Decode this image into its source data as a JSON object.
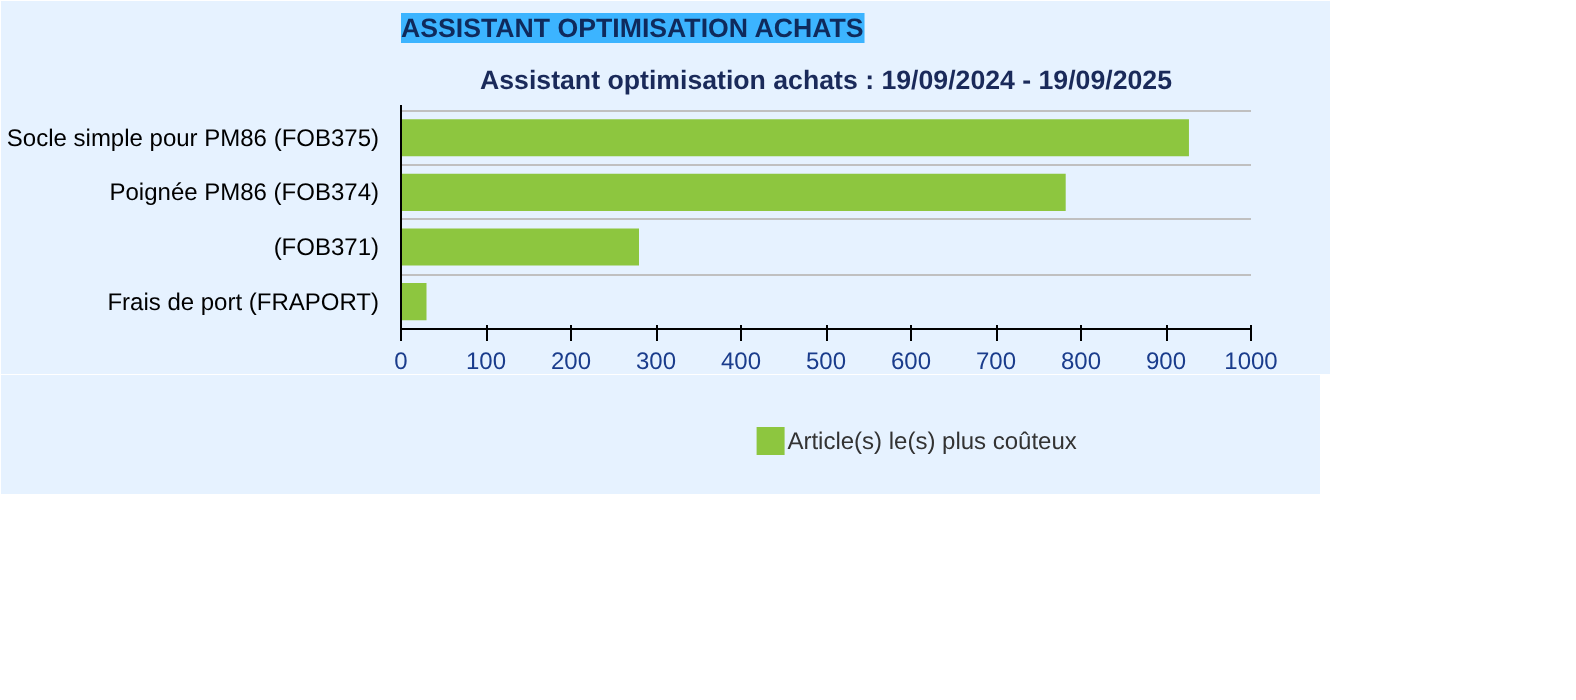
{
  "chart_data": {
    "type": "bar",
    "orientation": "horizontal",
    "title": "ASSISTANT OPTIMISATION ACHATS",
    "subtitle": "Assistant optimisation achats : 19/09/2024 - 19/09/2025",
    "categories": [
      "Socle simple pour PM86 (FOB375)",
      "Poignée PM86 (FOB374)",
      "(FOB371)",
      "Frais de port (FRAPORT)"
    ],
    "series": [
      {
        "name": "Article(s) le(s) plus coûteux",
        "color": "#8dc63f",
        "values": [
          927,
          782,
          280,
          30
        ]
      }
    ],
    "xlim": [
      0,
      1000
    ],
    "xticks": [
      0,
      100,
      200,
      300,
      400,
      500,
      600,
      700,
      800,
      900,
      1000
    ],
    "grid": "y",
    "legend": "bottom"
  }
}
